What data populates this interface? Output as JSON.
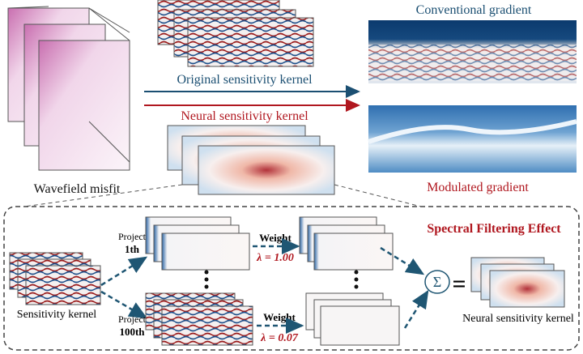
{
  "top": {
    "conventional_label": "Conventional gradient",
    "original_arrow_label": "Original sensitivity kernel",
    "neural_arrow_label": "Neural sensitivity kernel",
    "misfit_label": "Wavefield misfit",
    "modulated_label": "Modulated gradient"
  },
  "bottom": {
    "title": "Spectral Filtering Effect",
    "input_label": "Sensitivity kernel",
    "branches": [
      {
        "project": "Project",
        "order": "1th",
        "weight": "Weight",
        "lambda": "λ = 1.00"
      },
      {
        "project": "Project",
        "order": "100th",
        "weight": "Weight",
        "lambda": "λ = 0.07"
      }
    ],
    "sum_symbol": "Σ",
    "equals": "=",
    "output_label": "Neural sensitivity kernel"
  }
}
